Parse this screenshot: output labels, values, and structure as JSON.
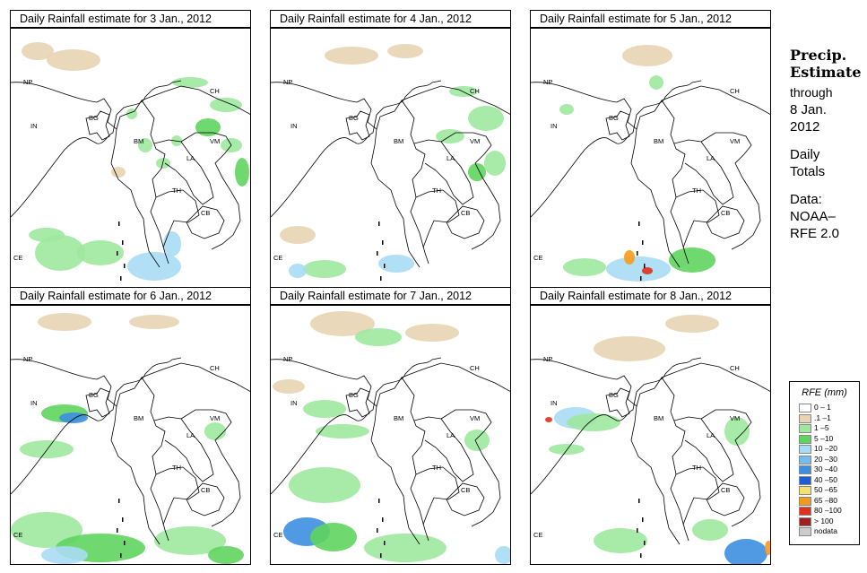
{
  "panels": [
    {
      "title": "Daily Rainfall estimate for  3 Jan., 2012"
    },
    {
      "title": "Daily Rainfall estimate for  4 Jan., 2012"
    },
    {
      "title": "Daily Rainfall estimate for  5 Jan., 2012"
    },
    {
      "title": "Daily Rainfall estimate for  6 Jan., 2012"
    },
    {
      "title": "Daily Rainfall estimate for  7 Jan., 2012"
    },
    {
      "title": "Daily Rainfall estimate for  8 Jan., 2012"
    }
  ],
  "country_labels": {
    "np": "NP",
    "ch": "CH",
    "in": "IN",
    "bg": "BG",
    "bm": "BM",
    "vm": "VM",
    "la": "LA",
    "th": "TH",
    "cb": "CB",
    "ce": "CE"
  },
  "sidebar": {
    "title_line1": "Precip.",
    "title_line2": "Estimate",
    "through": "through",
    "date_line1": "8 Jan.",
    "date_line2": "2012",
    "daily_line1": "Daily",
    "daily_line2": "Totals",
    "data_line1": "Data:",
    "data_line2": "NOAA–",
    "data_line3": "RFE 2.0"
  },
  "legend": {
    "title": "RFE (mm)",
    "items": [
      {
        "label": "0 – 1",
        "color": "#ffffff"
      },
      {
        "label": ".1 –1",
        "color": "#e8d4b4"
      },
      {
        "label": "1 –5",
        "color": "#9ee89e"
      },
      {
        "label": "5 –10",
        "color": "#5fd45f"
      },
      {
        "label": "10 –20",
        "color": "#a8dcf4"
      },
      {
        "label": "20 –30",
        "color": "#74bcee"
      },
      {
        "label": "30 –40",
        "color": "#3c8fe0"
      },
      {
        "label": "40 –50",
        "color": "#1e5ed2"
      },
      {
        "label": "50 –65",
        "color": "#f6e26a"
      },
      {
        "label": "65 –80",
        "color": "#f79a18"
      },
      {
        "label": "80 –100",
        "color": "#e0301e"
      },
      {
        "label": "> 100",
        "color": "#a01e1e"
      },
      {
        "label": "nodata",
        "color": "#cccccc"
      }
    ]
  }
}
